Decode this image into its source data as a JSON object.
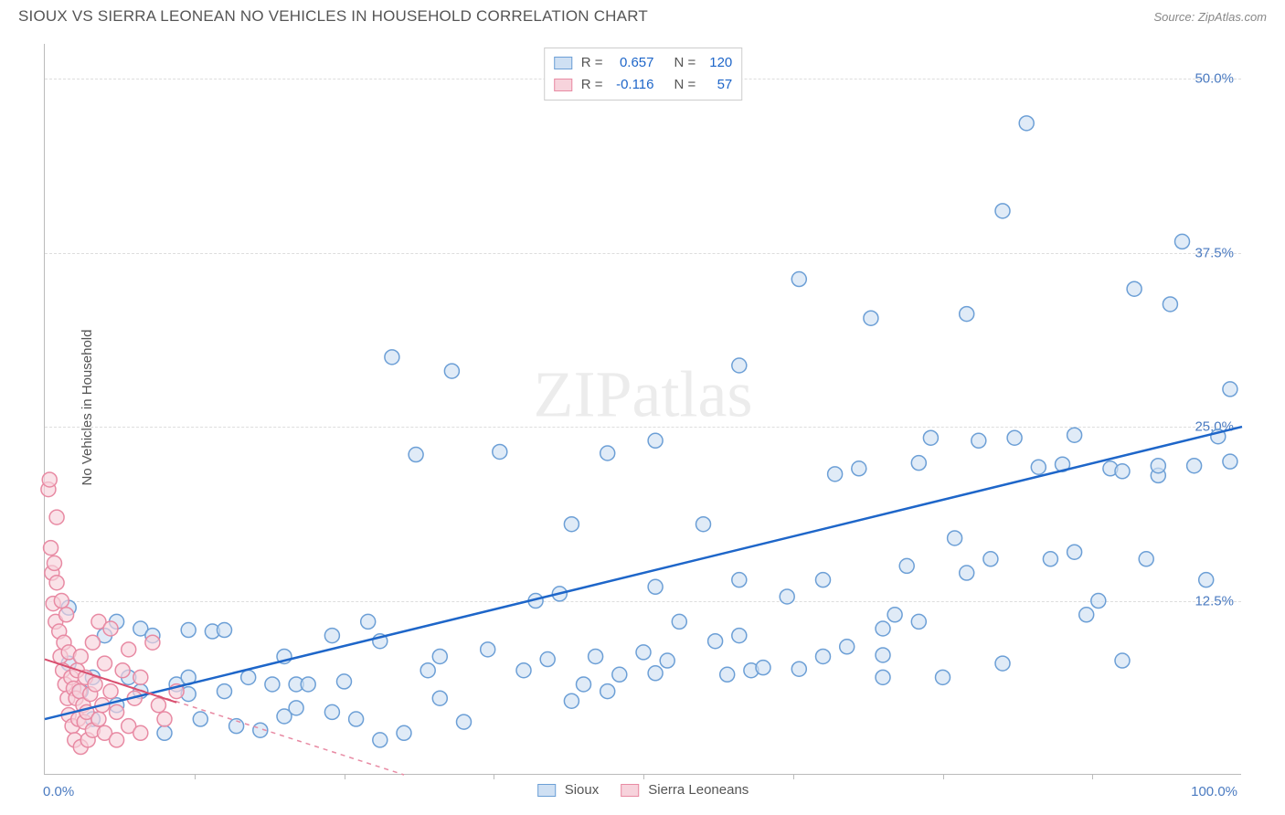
{
  "header": {
    "title": "SIOUX VS SIERRA LEONEAN NO VEHICLES IN HOUSEHOLD CORRELATION CHART",
    "source": "Source: ZipAtlas.com"
  },
  "ylabel": "No Vehicles in Household",
  "watermark": "ZIPatlas",
  "chart": {
    "type": "scatter",
    "xlim": [
      0,
      100
    ],
    "ylim": [
      0,
      52.5
    ],
    "xtick_step": 12.5,
    "ytick_values": [
      12.5,
      25.0,
      37.5,
      50.0
    ],
    "ytick_labels": [
      "12.5%",
      "25.0%",
      "37.5%",
      "50.0%"
    ],
    "xlabel_min": "0.0%",
    "xlabel_max": "100.0%",
    "axis_color": "#bbbbbb",
    "grid_color": "#dddddd",
    "background_color": "#ffffff",
    "tick_label_color_blue": "#4a7ac0",
    "marker_radius": 8,
    "marker_stroke_width": 1.5,
    "series": [
      {
        "name": "Sioux",
        "fill": "#cfe0f3",
        "stroke": "#6c9fd6",
        "fill_opacity": 0.65,
        "regression": {
          "x1": 0,
          "y1": 4.0,
          "x2": 100,
          "y2": 25.0,
          "color": "#1e66c9",
          "width": 2.5,
          "dash": "none"
        },
        "points": [
          [
            2,
            12
          ],
          [
            2,
            8
          ],
          [
            3,
            6
          ],
          [
            4,
            7
          ],
          [
            4,
            4
          ],
          [
            5,
            10
          ],
          [
            6,
            11
          ],
          [
            6,
            5
          ],
          [
            7,
            7
          ],
          [
            8,
            10.5
          ],
          [
            8,
            6
          ],
          [
            9,
            10
          ],
          [
            10,
            3
          ],
          [
            11,
            6.5
          ],
          [
            12,
            10.4
          ],
          [
            12,
            7
          ],
          [
            13,
            4
          ],
          [
            14,
            10.3
          ],
          [
            15,
            10.4
          ],
          [
            15,
            6
          ],
          [
            16,
            3.5
          ],
          [
            17,
            7
          ],
          [
            18,
            3.2
          ],
          [
            19,
            6.5
          ],
          [
            20,
            4.2
          ],
          [
            20,
            8.5
          ],
          [
            21,
            4.8
          ],
          [
            21,
            6.5
          ],
          [
            22,
            6.5
          ],
          [
            24,
            10
          ],
          [
            24,
            4.5
          ],
          [
            25,
            6.7
          ],
          [
            26,
            4
          ],
          [
            27,
            11
          ],
          [
            28,
            2.5
          ],
          [
            28,
            9.6
          ],
          [
            29,
            30
          ],
          [
            30,
            3
          ],
          [
            31,
            23
          ],
          [
            32,
            7.5
          ],
          [
            33,
            5.5
          ],
          [
            34,
            29
          ],
          [
            35,
            3.8
          ],
          [
            37,
            9
          ],
          [
            38,
            23.2
          ],
          [
            40,
            7.5
          ],
          [
            41,
            12.5
          ],
          [
            42,
            8.3
          ],
          [
            43,
            13
          ],
          [
            44,
            5.3
          ],
          [
            44,
            18
          ],
          [
            45,
            6.5
          ],
          [
            46,
            8.5
          ],
          [
            47,
            23.1
          ],
          [
            48,
            7.2
          ],
          [
            50,
            8.8
          ],
          [
            51,
            7.3
          ],
          [
            51,
            13.5
          ],
          [
            51,
            24
          ],
          [
            52,
            8.2
          ],
          [
            53,
            11
          ],
          [
            55,
            18
          ],
          [
            56,
            9.6
          ],
          [
            57,
            7.2
          ],
          [
            58,
            29.4
          ],
          [
            58,
            10
          ],
          [
            59,
            7.5
          ],
          [
            60,
            7.7
          ],
          [
            62,
            12.8
          ],
          [
            63,
            35.6
          ],
          [
            63,
            7.6
          ],
          [
            65,
            8.5
          ],
          [
            65,
            14
          ],
          [
            66,
            21.6
          ],
          [
            67,
            9.2
          ],
          [
            68,
            22
          ],
          [
            69,
            32.8
          ],
          [
            70,
            7
          ],
          [
            70,
            10.5
          ],
          [
            71,
            11.5
          ],
          [
            72,
            15
          ],
          [
            73,
            22.4
          ],
          [
            73,
            11
          ],
          [
            74,
            24.2
          ],
          [
            75,
            7
          ],
          [
            76,
            17
          ],
          [
            77,
            33.1
          ],
          [
            77,
            14.5
          ],
          [
            78,
            24
          ],
          [
            79,
            15.5
          ],
          [
            80,
            40.5
          ],
          [
            81,
            24.2
          ],
          [
            82,
            46.8
          ],
          [
            83,
            22.1
          ],
          [
            84,
            15.5
          ],
          [
            85,
            22.3
          ],
          [
            86,
            24.4
          ],
          [
            86,
            16
          ],
          [
            87,
            11.5
          ],
          [
            88,
            12.5
          ],
          [
            89,
            22
          ],
          [
            90,
            21.8
          ],
          [
            90,
            8.2
          ],
          [
            91,
            34.9
          ],
          [
            92,
            15.5
          ],
          [
            93,
            21.5
          ],
          [
            94,
            33.8
          ],
          [
            95,
            38.3
          ],
          [
            96,
            22.2
          ],
          [
            97,
            14
          ],
          [
            98,
            24.3
          ],
          [
            99,
            27.7
          ],
          [
            99,
            22.5
          ],
          [
            93,
            22.2
          ],
          [
            12,
            5.8
          ],
          [
            33,
            8.5
          ],
          [
            47,
            6
          ],
          [
            58,
            14
          ],
          [
            70,
            8.6
          ],
          [
            80,
            8
          ]
        ]
      },
      {
        "name": "Sierra Leoneans",
        "fill": "#f7d3dc",
        "stroke": "#e88aa3",
        "fill_opacity": 0.65,
        "regression": {
          "x1": 0,
          "y1": 8.3,
          "x2": 30,
          "y2": 0,
          "color": "#e88aa3",
          "width": 1.5,
          "dash": "5,5"
        },
        "regression_solid": {
          "x1": 0,
          "y1": 8.3,
          "x2": 11,
          "y2": 5.2,
          "color": "#d94f6f",
          "width": 2,
          "dash": "none"
        },
        "points": [
          [
            0.3,
            20.5
          ],
          [
            0.4,
            21.2
          ],
          [
            0.5,
            16.3
          ],
          [
            0.6,
            14.5
          ],
          [
            0.7,
            12.3
          ],
          [
            0.8,
            15.2
          ],
          [
            0.9,
            11
          ],
          [
            1,
            13.8
          ],
          [
            1,
            18.5
          ],
          [
            1.2,
            10.3
          ],
          [
            1.3,
            8.5
          ],
          [
            1.4,
            12.5
          ],
          [
            1.5,
            7.5
          ],
          [
            1.6,
            9.5
          ],
          [
            1.7,
            6.5
          ],
          [
            1.8,
            11.5
          ],
          [
            1.9,
            5.5
          ],
          [
            2,
            8.8
          ],
          [
            2,
            4.3
          ],
          [
            2.2,
            7
          ],
          [
            2.3,
            3.5
          ],
          [
            2.4,
            6.2
          ],
          [
            2.5,
            2.5
          ],
          [
            2.6,
            5.5
          ],
          [
            2.7,
            7.5
          ],
          [
            2.8,
            4
          ],
          [
            2.9,
            6
          ],
          [
            3,
            8.5
          ],
          [
            3,
            2
          ],
          [
            3.2,
            5
          ],
          [
            3.3,
            3.8
          ],
          [
            3.4,
            7
          ],
          [
            3.5,
            4.5
          ],
          [
            3.6,
            2.5
          ],
          [
            3.8,
            5.8
          ],
          [
            4,
            3.2
          ],
          [
            4,
            9.5
          ],
          [
            4.2,
            6.5
          ],
          [
            4.5,
            4
          ],
          [
            4.5,
            11
          ],
          [
            4.8,
            5
          ],
          [
            5,
            8
          ],
          [
            5,
            3
          ],
          [
            5.5,
            6
          ],
          [
            5.5,
            10.5
          ],
          [
            6,
            4.5
          ],
          [
            6,
            2.5
          ],
          [
            6.5,
            7.5
          ],
          [
            7,
            3.5
          ],
          [
            7,
            9
          ],
          [
            7.5,
            5.5
          ],
          [
            8,
            3
          ],
          [
            8,
            7
          ],
          [
            9,
            9.5
          ],
          [
            9.5,
            5
          ],
          [
            10,
            4
          ],
          [
            11,
            6
          ]
        ]
      }
    ],
    "stats_box": {
      "rows": [
        {
          "swatch_fill": "#cfe0f3",
          "swatch_stroke": "#6c9fd6",
          "r_label": "R =",
          "r_value": "0.657",
          "n_label": "N =",
          "n_value": "120",
          "value_color": "#1e66c9"
        },
        {
          "swatch_fill": "#f7d3dc",
          "swatch_stroke": "#e88aa3",
          "r_label": "R =",
          "r_value": "-0.116",
          "n_label": "N =",
          "n_value": "57",
          "value_color": "#1e66c9"
        }
      ]
    },
    "legend": [
      {
        "swatch_fill": "#cfe0f3",
        "swatch_stroke": "#6c9fd6",
        "label": "Sioux"
      },
      {
        "swatch_fill": "#f7d3dc",
        "swatch_stroke": "#e88aa3",
        "label": "Sierra Leoneans"
      }
    ]
  }
}
